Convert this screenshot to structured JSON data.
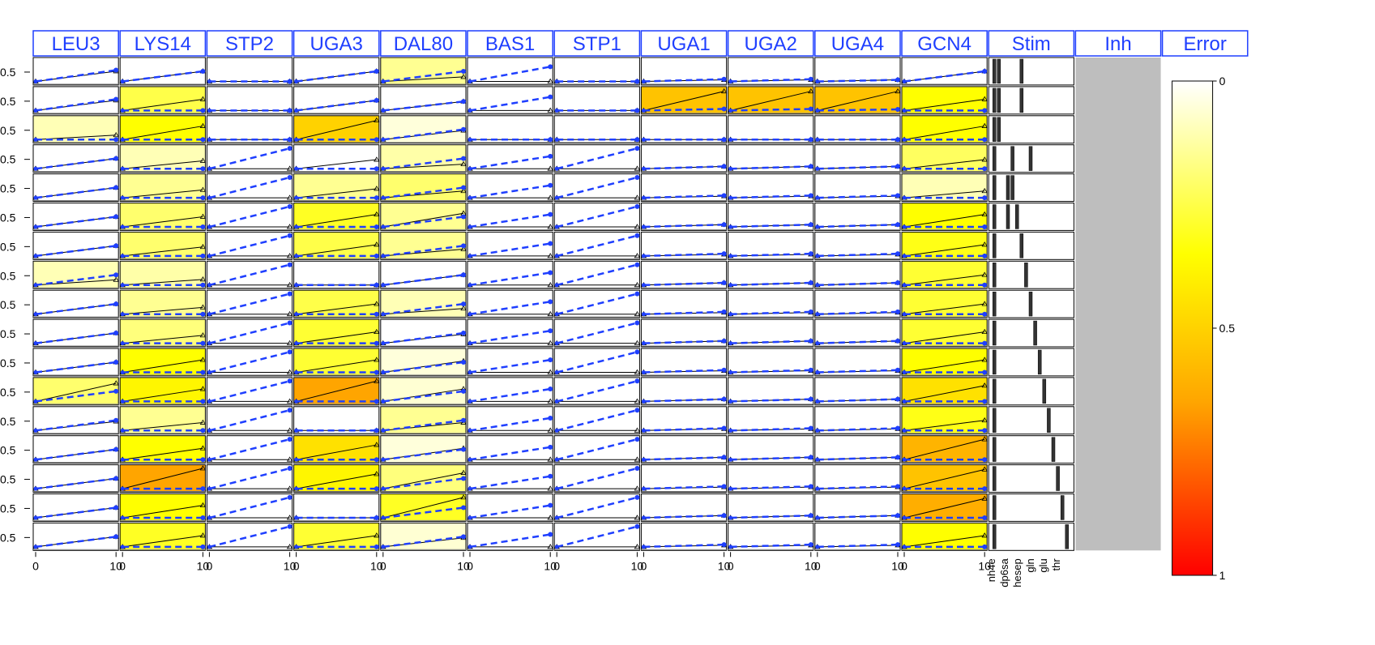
{
  "chart_data": {
    "type": "heatmap",
    "title": "",
    "xlabel": "",
    "ylabel": "",
    "columns": [
      "LEU3",
      "LYS14",
      "STP2",
      "UGA3",
      "DAL80",
      "BAS1",
      "STP1",
      "UGA1",
      "UGA2",
      "UGA4",
      "GCN4",
      "Stim",
      "Inh",
      "Error"
    ],
    "row_count": 17,
    "row_tick_label": "0.5",
    "x_tick_labels": [
      "0",
      "10"
    ],
    "x_domain": [
      0,
      10
    ],
    "y_domain": [
      0,
      1
    ],
    "error_matrix": [
      [
        0,
        0,
        0,
        0,
        0.15,
        0,
        0,
        0,
        0,
        0,
        0
      ],
      [
        0,
        0.25,
        0,
        0,
        0,
        0,
        0,
        0.55,
        0.55,
        0.55,
        0.35
      ],
      [
        0.1,
        0.35,
        0,
        0.5,
        0.05,
        0,
        0,
        0,
        0,
        0,
        0.35
      ],
      [
        0,
        0.1,
        0,
        0,
        0.12,
        0,
        0,
        0,
        0,
        0,
        0.22
      ],
      [
        0,
        0.15,
        0,
        0.15,
        0.2,
        0,
        0,
        0,
        0,
        0,
        0.1
      ],
      [
        0,
        0.2,
        0,
        0.3,
        0.15,
        0,
        0,
        0,
        0,
        0,
        0.35
      ],
      [
        0,
        0.2,
        0,
        0.25,
        0.15,
        0,
        0,
        0,
        0,
        0,
        0.32
      ],
      [
        0.1,
        0.12,
        0,
        0,
        0,
        0,
        0,
        0,
        0,
        0,
        0.28
      ],
      [
        0,
        0.15,
        0,
        0.25,
        0.1,
        0,
        0,
        0,
        0,
        0,
        0.28
      ],
      [
        0,
        0.18,
        0,
        0.28,
        0,
        0,
        0,
        0,
        0,
        0,
        0.28
      ],
      [
        0,
        0.35,
        0,
        0.28,
        0.05,
        0,
        0,
        0,
        0,
        0,
        0.35
      ],
      [
        0.2,
        0.38,
        0,
        0.65,
        0.06,
        0,
        0,
        0,
        0,
        0,
        0.45
      ],
      [
        0,
        0.15,
        0,
        0,
        0.15,
        0,
        0,
        0,
        0,
        0,
        0.32
      ],
      [
        0,
        0.35,
        0,
        0.45,
        0.05,
        0,
        0,
        0,
        0,
        0,
        0.6
      ],
      [
        0,
        0.65,
        0,
        0.38,
        0.18,
        0,
        0,
        0,
        0,
        0,
        0.55
      ],
      [
        0,
        0.35,
        0,
        0,
        0.3,
        0,
        0,
        0,
        0,
        0,
        0.62
      ],
      [
        0,
        0.3,
        0,
        0.28,
        0.06,
        0,
        0,
        0,
        0,
        0,
        0.35
      ]
    ],
    "blue_end": [
      [
        0.55,
        0.5,
        0.05,
        0.5,
        0.5,
        0.7,
        0.05,
        0.15,
        0.15,
        0.12,
        0.5
      ],
      [
        0.55,
        0.05,
        0.05,
        0.5,
        0.45,
        0.65,
        0.05,
        0.12,
        0.12,
        0.1,
        0.05
      ],
      [
        0.05,
        0.05,
        0.05,
        0.05,
        0.5,
        0.05,
        0.05,
        0.05,
        0.05,
        0.05,
        0.05
      ],
      [
        0.5,
        0.05,
        0.95,
        0.05,
        0.5,
        0.6,
        0.95,
        0.15,
        0.15,
        0.15,
        0.05
      ],
      [
        0.5,
        0.05,
        0.95,
        0.05,
        0.5,
        0.6,
        0.95,
        0.15,
        0.15,
        0.15,
        0.05
      ],
      [
        0.5,
        0.05,
        0.95,
        0.05,
        0.5,
        0.6,
        0.95,
        0.15,
        0.15,
        0.15,
        0.05
      ],
      [
        0.5,
        0.05,
        0.95,
        0.05,
        0.5,
        0.6,
        0.95,
        0.15,
        0.15,
        0.15,
        0.05
      ],
      [
        0.5,
        0.05,
        0.95,
        0.05,
        0.5,
        0.6,
        0.95,
        0.15,
        0.15,
        0.15,
        0.05
      ],
      [
        0.5,
        0.05,
        0.95,
        0.05,
        0.5,
        0.6,
        0.95,
        0.15,
        0.15,
        0.15,
        0.05
      ],
      [
        0.5,
        0.05,
        0.95,
        0.05,
        0.5,
        0.6,
        0.95,
        0.15,
        0.15,
        0.15,
        0.05
      ],
      [
        0.5,
        0.05,
        0.95,
        0.05,
        0.5,
        0.6,
        0.95,
        0.15,
        0.15,
        0.15,
        0.05
      ],
      [
        0.5,
        0.05,
        0.95,
        0.05,
        0.5,
        0.6,
        0.95,
        0.15,
        0.15,
        0.15,
        0.05
      ],
      [
        0.5,
        0.05,
        0.95,
        0.05,
        0.5,
        0.6,
        0.95,
        0.15,
        0.15,
        0.15,
        0.05
      ],
      [
        0.5,
        0.05,
        0.95,
        0.05,
        0.5,
        0.6,
        0.95,
        0.15,
        0.15,
        0.15,
        0.05
      ],
      [
        0.5,
        0.05,
        0.95,
        0.05,
        0.5,
        0.6,
        0.95,
        0.15,
        0.15,
        0.15,
        0.05
      ],
      [
        0.5,
        0.05,
        0.95,
        0.05,
        0.5,
        0.6,
        0.95,
        0.15,
        0.15,
        0.15,
        0.05
      ],
      [
        0.5,
        0.05,
        0.95,
        0.05,
        0.5,
        0.6,
        0.95,
        0.15,
        0.15,
        0.15,
        0.05
      ]
    ],
    "black_end": [
      [
        0.5,
        0.5,
        0.05,
        0.5,
        0.25,
        0.05,
        0.05,
        0.12,
        0.12,
        0.12,
        0.5
      ],
      [
        0.5,
        0.55,
        0.05,
        0.5,
        0.45,
        0.05,
        0.05,
        0.9,
        0.9,
        0.9,
        0.55
      ],
      [
        0.25,
        0.65,
        0.05,
        0.9,
        0.45,
        0.05,
        0.05,
        0.05,
        0.05,
        0.05,
        0.65
      ],
      [
        0.5,
        0.4,
        0.05,
        0.45,
        0.25,
        0.05,
        0.05,
        0.15,
        0.15,
        0.15,
        0.45
      ],
      [
        0.5,
        0.4,
        0.05,
        0.45,
        0.35,
        0.05,
        0.05,
        0.12,
        0.12,
        0.12,
        0.35
      ],
      [
        0.5,
        0.5,
        0.05,
        0.6,
        0.65,
        0.05,
        0.05,
        0.15,
        0.15,
        0.15,
        0.6
      ],
      [
        0.5,
        0.45,
        0.05,
        0.55,
        0.35,
        0.05,
        0.05,
        0.12,
        0.12,
        0.12,
        0.55
      ],
      [
        0.28,
        0.3,
        0.05,
        0.05,
        0.5,
        0.05,
        0.05,
        0.15,
        0.15,
        0.15,
        0.5
      ],
      [
        0.5,
        0.35,
        0.05,
        0.5,
        0.3,
        0.05,
        0.05,
        0.12,
        0.12,
        0.12,
        0.5
      ],
      [
        0.5,
        0.4,
        0.05,
        0.55,
        0.45,
        0.05,
        0.05,
        0.15,
        0.15,
        0.15,
        0.55
      ],
      [
        0.5,
        0.6,
        0.05,
        0.6,
        0.55,
        0.05,
        0.05,
        0.12,
        0.12,
        0.12,
        0.6
      ],
      [
        0.85,
        0.6,
        0.05,
        0.95,
        0.6,
        0.05,
        0.05,
        0.15,
        0.15,
        0.15,
        0.75
      ],
      [
        0.45,
        0.4,
        0.05,
        0.05,
        0.4,
        0.05,
        0.05,
        0.12,
        0.12,
        0.12,
        0.5
      ],
      [
        0.5,
        0.55,
        0.05,
        0.7,
        0.55,
        0.05,
        0.05,
        0.15,
        0.15,
        0.15,
        0.95
      ],
      [
        0.5,
        0.95,
        0.05,
        0.7,
        0.75,
        0.05,
        0.05,
        0.12,
        0.12,
        0.12,
        0.9
      ],
      [
        0.5,
        0.6,
        0.05,
        0.05,
        0.95,
        0.05,
        0.05,
        0.15,
        0.15,
        0.15,
        0.9
      ],
      [
        0.5,
        0.55,
        0.05,
        0.55,
        0.45,
        0.05,
        0.05,
        0.12,
        0.12,
        0.12,
        0.55
      ]
    ],
    "stimuli": {
      "labels": [
        "nh4e",
        "dp6sa",
        "hesep",
        "gln",
        "glu",
        "thr"
      ],
      "bars": [
        [
          0,
          1,
          6
        ],
        [
          0,
          1,
          6
        ],
        [
          0,
          1
        ],
        [
          0,
          4,
          8
        ],
        [
          0,
          3,
          4
        ],
        [
          0,
          3,
          5
        ],
        [
          0,
          6
        ],
        [
          0,
          7
        ],
        [
          0,
          8
        ],
        [
          0,
          9
        ],
        [
          0,
          10
        ],
        [
          0,
          11
        ],
        [
          0,
          12
        ],
        [
          0,
          13
        ],
        [
          0,
          14
        ],
        [
          0,
          15
        ],
        [
          0,
          16
        ]
      ]
    },
    "inhibitor_fill": "#bebebe",
    "colorbar": {
      "label": "Error",
      "ticks": [
        "0",
        "0.5",
        "1"
      ],
      "colors": [
        "#ffffff",
        "#ffff00",
        "#ffa500",
        "#ff0000"
      ]
    },
    "colors": {
      "header": "#1f3fff",
      "fitted": "#1f3fff",
      "panel_grid": "#000000"
    }
  }
}
